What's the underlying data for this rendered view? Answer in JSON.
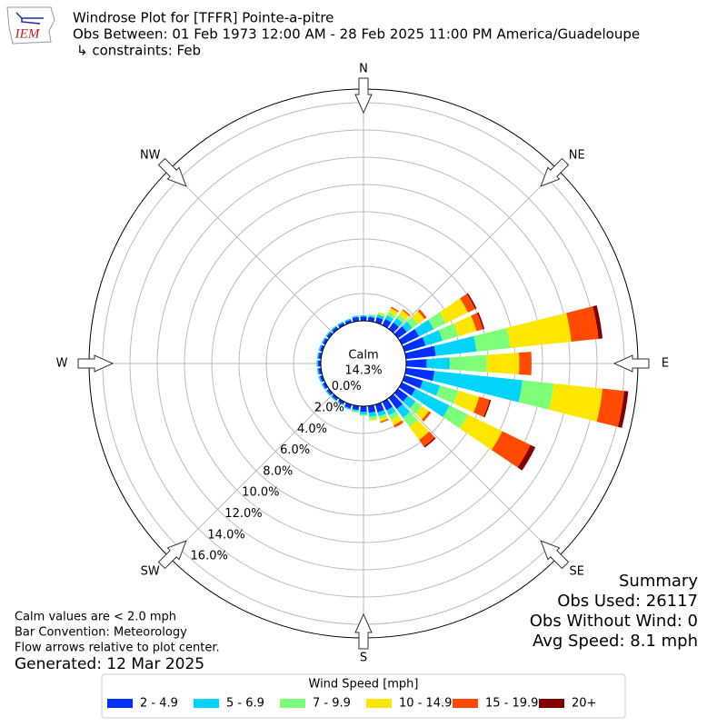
{
  "chart_data": {
    "type": "windrose",
    "title_lines": [
      "Windrose Plot for [TFFR] Pointe-a-pitre",
      "Obs Between: 01 Feb 1973 12:00 AM - 28 Feb 2025 11:00 PM America/Guadeloupe",
      "↳ constraints: Feb"
    ],
    "compass_labels": [
      "N",
      "NE",
      "E",
      "SE",
      "S",
      "SW",
      "W",
      "NW"
    ],
    "x": [
      0,
      10,
      20,
      30,
      40,
      50,
      60,
      70,
      80,
      90,
      100,
      110,
      120,
      130,
      140,
      150,
      160,
      170,
      180,
      190,
      200,
      210,
      220,
      230,
      240,
      250,
      260,
      270,
      280,
      290,
      300,
      310,
      320,
      330,
      340,
      350
    ],
    "series": [
      {
        "name": "2 - 4.9",
        "color": "#0030ff",
        "values": [
          0.3,
          0.3,
          0.4,
          0.5,
          0.6,
          0.8,
          1.4,
          1.6,
          2.2,
          1.5,
          2.1,
          1.4,
          1.1,
          0.9,
          1.0,
          0.7,
          0.6,
          0.5,
          0.4,
          0.3,
          0.3,
          0.2,
          0.2,
          0.2,
          0.2,
          0.2,
          0.2,
          0.2,
          0.2,
          0.2,
          0.2,
          0.2,
          0.2,
          0.2,
          0.2,
          0.3
        ]
      },
      {
        "name": "5 - 6.9",
        "color": "#00d4fa",
        "values": [
          0.1,
          0.1,
          0.2,
          0.3,
          0.4,
          0.5,
          1.2,
          1.3,
          3.0,
          1.7,
          6.5,
          1.3,
          2.8,
          0.7,
          0.8,
          0.4,
          0.3,
          0.3,
          0.2,
          0.1,
          0.1,
          0.1,
          0.1,
          0.1,
          0.1,
          0.1,
          0.1,
          0.1,
          0.1,
          0.1,
          0.1,
          0.1,
          0.1,
          0.1,
          0.1,
          0.1
        ]
      },
      {
        "name": "7 - 9.9",
        "color": "#7dff7a",
        "values": [
          0,
          0.1,
          0.1,
          0.3,
          0.3,
          0.5,
          1.0,
          1.2,
          2.5,
          2.7,
          2.3,
          1.4,
          1.5,
          0.6,
          0.8,
          0.4,
          0.2,
          0.2,
          0.1,
          0.1,
          0,
          0,
          0,
          0,
          0,
          0,
          0,
          0,
          0,
          0,
          0,
          0,
          0,
          0,
          0,
          0
        ]
      },
      {
        "name": "10 - 14.9",
        "color": "#ffe600",
        "values": [
          0,
          0,
          0.1,
          0.3,
          0.4,
          0.6,
          1.8,
          1.4,
          4.5,
          2.4,
          3.6,
          1.6,
          2.8,
          0.6,
          1.2,
          0.4,
          0.2,
          0.1,
          0,
          0,
          0,
          0,
          0,
          0,
          0,
          0,
          0,
          0,
          0,
          0,
          0,
          0,
          0,
          0,
          0,
          0
        ]
      },
      {
        "name": "15 - 19.9",
        "color": "#ff4a00",
        "values": [
          0,
          0,
          0,
          0.1,
          0.1,
          0.2,
          0.6,
          0.5,
          2.0,
          0.9,
          1.6,
          0.8,
          2.3,
          0.2,
          0.6,
          0.2,
          0.1,
          0,
          0,
          0,
          0,
          0,
          0,
          0,
          0,
          0,
          0,
          0,
          0,
          0,
          0,
          0,
          0,
          0,
          0,
          0
        ]
      },
      {
        "name": "20+",
        "color": "#800000",
        "values": [
          0,
          0,
          0,
          0,
          0,
          0,
          0.1,
          0.1,
          0.3,
          0,
          0.3,
          0.1,
          0.4,
          0,
          0.1,
          0,
          0,
          0,
          0,
          0,
          0,
          0,
          0,
          0,
          0,
          0,
          0,
          0,
          0,
          0,
          0,
          0,
          0,
          0,
          0,
          0
        ]
      }
    ],
    "ylim": [
      0,
      17
    ],
    "yticks": [
      {
        "value": 0,
        "label": "0.0%"
      },
      {
        "value": 2,
        "label": "2.0%"
      },
      {
        "value": 4,
        "label": "4.0%"
      },
      {
        "value": 6,
        "label": "6.0%"
      },
      {
        "value": 8,
        "label": "8.0%"
      },
      {
        "value": 10,
        "label": "10.0%"
      },
      {
        "value": 12,
        "label": "12.0%"
      },
      {
        "value": 14,
        "label": "14.0%"
      },
      {
        "value": 16,
        "label": "16.0%"
      }
    ],
    "calm_label": "Calm",
    "calm_value": 14.3,
    "calm_value_label": "14.3%",
    "summary": [
      "Summary",
      "Obs Used: 26117",
      "Obs Without Wind: 0",
      "Avg Speed: 8.1 mph"
    ],
    "footnotes": [
      "Calm values are < 2.0 mph",
      "Bar Convention: Meteorology",
      "Flow arrows relative to plot center."
    ],
    "generated": "Generated: 12 Mar 2025",
    "legend_title": "Wind Speed [mph]",
    "logo": "IEM"
  }
}
